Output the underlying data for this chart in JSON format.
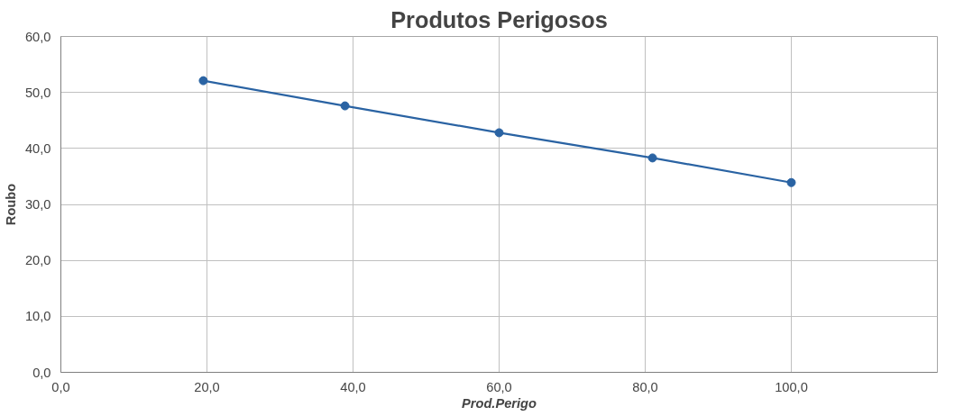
{
  "chart_data": {
    "type": "line",
    "title": "Produtos Perigosos",
    "xlabel": "Prod.Perigo",
    "ylabel": "Roubo",
    "series": [
      {
        "color": "#2a63a3",
        "x": [
          19.5,
          38.9,
          60,
          81,
          100
        ],
        "values": [
          52.1,
          47.6,
          42.8,
          38.3,
          33.9
        ]
      }
    ],
    "xlim": [
      0,
      120
    ],
    "xticks": [
      {
        "value": 0,
        "label": "0,0"
      },
      {
        "value": 20,
        "label": "20,0"
      },
      {
        "value": 40,
        "label": "40,0"
      },
      {
        "value": 60,
        "label": "60,0"
      },
      {
        "value": 80,
        "label": "80,0"
      },
      {
        "value": 100,
        "label": "100,0"
      }
    ],
    "ylim": [
      0,
      60
    ],
    "yticks": [
      {
        "value": 0,
        "label": "0,0"
      },
      {
        "value": 10,
        "label": "10,0"
      },
      {
        "value": 20,
        "label": "20,0"
      },
      {
        "value": 30,
        "label": "30,0"
      },
      {
        "value": 40,
        "label": "40,0"
      },
      {
        "value": 50,
        "label": "50,0"
      },
      {
        "value": 60,
        "label": "60,0"
      }
    ],
    "grid": true,
    "marker": "circle",
    "line_style": "solid"
  }
}
